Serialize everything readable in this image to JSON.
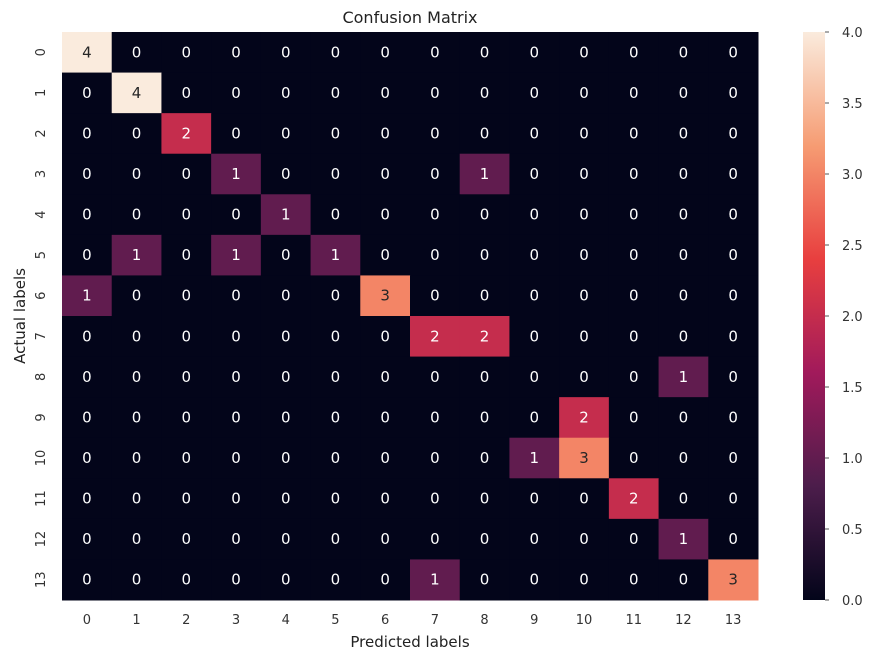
{
  "chart_data": {
    "type": "heatmap",
    "title": "Confusion Matrix",
    "xlabel": "Predicted labels",
    "ylabel": "Actual labels",
    "x_categories": [
      "0",
      "1",
      "2",
      "3",
      "4",
      "5",
      "6",
      "7",
      "8",
      "9",
      "10",
      "11",
      "12",
      "13"
    ],
    "y_categories": [
      "0",
      "1",
      "2",
      "3",
      "4",
      "5",
      "6",
      "7",
      "8",
      "9",
      "10",
      "11",
      "12",
      "13"
    ],
    "matrix": [
      [
        4,
        0,
        0,
        0,
        0,
        0,
        0,
        0,
        0,
        0,
        0,
        0,
        0,
        0
      ],
      [
        0,
        4,
        0,
        0,
        0,
        0,
        0,
        0,
        0,
        0,
        0,
        0,
        0,
        0
      ],
      [
        0,
        0,
        2,
        0,
        0,
        0,
        0,
        0,
        0,
        0,
        0,
        0,
        0,
        0
      ],
      [
        0,
        0,
        0,
        1,
        0,
        0,
        0,
        0,
        1,
        0,
        0,
        0,
        0,
        0
      ],
      [
        0,
        0,
        0,
        0,
        1,
        0,
        0,
        0,
        0,
        0,
        0,
        0,
        0,
        0
      ],
      [
        0,
        1,
        0,
        1,
        0,
        1,
        0,
        0,
        0,
        0,
        0,
        0,
        0,
        0
      ],
      [
        1,
        0,
        0,
        0,
        0,
        0,
        3,
        0,
        0,
        0,
        0,
        0,
        0,
        0
      ],
      [
        0,
        0,
        0,
        0,
        0,
        0,
        0,
        2,
        2,
        0,
        0,
        0,
        0,
        0
      ],
      [
        0,
        0,
        0,
        0,
        0,
        0,
        0,
        0,
        0,
        0,
        0,
        0,
        1,
        0
      ],
      [
        0,
        0,
        0,
        0,
        0,
        0,
        0,
        0,
        0,
        0,
        2,
        0,
        0,
        0
      ],
      [
        0,
        0,
        0,
        0,
        0,
        0,
        0,
        0,
        0,
        1,
        3,
        0,
        0,
        0
      ],
      [
        0,
        0,
        0,
        0,
        0,
        0,
        0,
        0,
        0,
        0,
        0,
        2,
        0,
        0
      ],
      [
        0,
        0,
        0,
        0,
        0,
        0,
        0,
        0,
        0,
        0,
        0,
        0,
        1,
        0
      ],
      [
        0,
        0,
        0,
        0,
        0,
        0,
        0,
        1,
        0,
        0,
        0,
        0,
        0,
        3
      ]
    ],
    "vmin": 0,
    "vmax": 4,
    "colorbar_ticks": [
      "0.0",
      "0.5",
      "1.0",
      "1.5",
      "2.0",
      "2.5",
      "3.0",
      "3.5",
      "4.0"
    ],
    "colormap": "rocket",
    "colormap_stops": [
      "#03051a",
      "#4c1d4b",
      "#a11a5b",
      "#e83f3f",
      "#f69c73",
      "#faebdd"
    ],
    "grid": false,
    "annotations": true
  }
}
